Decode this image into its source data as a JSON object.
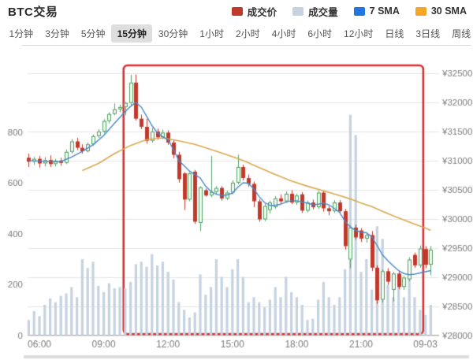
{
  "header": {
    "title": "BTC交易",
    "legend": [
      {
        "label": "成交价",
        "color": "#c0392b"
      },
      {
        "label": "成交量",
        "color": "#c5d2e0"
      },
      {
        "label": "7 SMA",
        "color": "#2276e0"
      },
      {
        "label": "30 SMA",
        "color": "#f5a623"
      }
    ]
  },
  "tabs": {
    "items": [
      "1分钟",
      "3分钟",
      "5分钟",
      "15分钟",
      "30分钟",
      "1小时",
      "2小时",
      "4小时",
      "6小时",
      "12小时",
      "日线",
      "3日线",
      "周线"
    ],
    "selected": "15分钟"
  },
  "chart_data": {
    "type": "candlestick",
    "title": "BTC交易 15分钟 K线图",
    "legend_position": "top-right",
    "grid": true,
    "price_axis": {
      "side": "right",
      "min": 28000,
      "max": 32500,
      "step": 500,
      "tick_values": [
        32500,
        32000,
        31500,
        31000,
        30500,
        30000,
        29500,
        29000,
        28500,
        28000
      ],
      "tick_labels": [
        "¥32500",
        "¥32000",
        "¥31500",
        "¥31000",
        "¥30500",
        "¥30000",
        "¥29500",
        "¥29000",
        "¥28500",
        "¥28000"
      ]
    },
    "volume_axis": {
      "side": "left",
      "min": 0,
      "max": 1030,
      "tick_values": [
        800,
        600,
        400,
        200,
        0
      ],
      "tick_labels": [
        "800",
        "600",
        "400",
        "200",
        "0"
      ]
    },
    "x_axis": {
      "tick_labels": [
        "06:00",
        "09:00",
        "12:00",
        "15:00",
        "18:00",
        "21:00",
        "09-03"
      ],
      "tick_indices": [
        2,
        14,
        26,
        38,
        50,
        62,
        74
      ]
    },
    "candle_fields": [
      "time",
      "open",
      "high",
      "low",
      "close",
      "volume"
    ],
    "candles": [
      [
        "05:30",
        31050,
        31120,
        30890,
        30980,
        60
      ],
      [
        "05:45",
        30980,
        31060,
        30930,
        31030,
        95
      ],
      [
        "06:00",
        31030,
        31080,
        30880,
        30950,
        75
      ],
      [
        "06:15",
        30950,
        31060,
        30900,
        31010,
        120
      ],
      [
        "06:30",
        31010,
        31090,
        30890,
        30940,
        145
      ],
      [
        "06:45",
        30940,
        31030,
        30900,
        31000,
        130
      ],
      [
        "07:00",
        31000,
        31050,
        30910,
        30960,
        155
      ],
      [
        "07:15",
        30960,
        31190,
        30940,
        31150,
        165
      ],
      [
        "07:30",
        31150,
        31370,
        31120,
        31330,
        190
      ],
      [
        "07:45",
        31330,
        31390,
        31180,
        31220,
        150
      ],
      [
        "08:00",
        31220,
        31280,
        31120,
        31160,
        300
      ],
      [
        "08:15",
        31160,
        31310,
        31140,
        31280,
        265
      ],
      [
        "08:30",
        31280,
        31450,
        31260,
        31420,
        290
      ],
      [
        "08:45",
        31420,
        31540,
        31390,
        31500,
        195
      ],
      [
        "09:00",
        31500,
        31710,
        31470,
        31680,
        170
      ],
      [
        "09:15",
        31680,
        31830,
        31640,
        31800,
        205
      ],
      [
        "09:30",
        31800,
        31980,
        31780,
        31880,
        185
      ],
      [
        "09:45",
        31880,
        31960,
        31830,
        31920,
        190
      ],
      [
        "10:00",
        31920,
        32010,
        31780,
        31990,
        185
      ],
      [
        "10:15",
        31990,
        32470,
        31950,
        32340,
        210
      ],
      [
        "10:30",
        32340,
        32480,
        31690,
        31720,
        280
      ],
      [
        "10:45",
        31720,
        31790,
        31540,
        31580,
        290
      ],
      [
        "11:00",
        31580,
        31720,
        31290,
        31340,
        270
      ],
      [
        "11:15",
        31340,
        31560,
        31310,
        31500,
        320
      ],
      [
        "11:30",
        31500,
        31550,
        31360,
        31400,
        275
      ],
      [
        "11:45",
        31400,
        31530,
        31370,
        31480,
        290
      ],
      [
        "12:00",
        31480,
        31520,
        31270,
        31310,
        250
      ],
      [
        "12:15",
        31310,
        31360,
        31040,
        31100,
        220
      ],
      [
        "12:30",
        31100,
        31150,
        30620,
        30680,
        130
      ],
      [
        "12:45",
        30780,
        30800,
        30150,
        30330,
        100
      ],
      [
        "13:00",
        30330,
        30800,
        30300,
        30780,
        70
      ],
      [
        "13:15",
        30810,
        30840,
        29910,
        29950,
        90
      ],
      [
        "13:30",
        29930,
        30560,
        29790,
        30540,
        240
      ],
      [
        "13:45",
        30490,
        30520,
        30380,
        30400,
        160
      ],
      [
        "14:00",
        30400,
        31080,
        30370,
        30460,
        190
      ],
      [
        "14:15",
        30460,
        30560,
        30420,
        30530,
        300
      ],
      [
        "14:30",
        30530,
        30560,
        30310,
        30350,
        230
      ],
      [
        "14:45",
        30350,
        30480,
        30320,
        30450,
        190
      ],
      [
        "15:00",
        30450,
        30660,
        30420,
        30620,
        260
      ],
      [
        "15:15",
        30620,
        31100,
        30590,
        30890,
        300
      ],
      [
        "15:30",
        30890,
        30930,
        30660,
        30700,
        230
      ],
      [
        "15:45",
        30700,
        30760,
        30550,
        30600,
        130
      ],
      [
        "16:00",
        30600,
        30640,
        30200,
        30300,
        150
      ],
      [
        "16:15",
        30300,
        30340,
        29950,
        29990,
        130
      ],
      [
        "16:30",
        29990,
        30260,
        29960,
        30220,
        110
      ],
      [
        "16:45",
        30150,
        30310,
        30090,
        30280,
        140
      ],
      [
        "17:00",
        30200,
        30390,
        30170,
        30350,
        190
      ],
      [
        "17:15",
        30350,
        30420,
        30260,
        30300,
        150
      ],
      [
        "17:30",
        30300,
        30470,
        30270,
        30430,
        230
      ],
      [
        "17:45",
        30430,
        30490,
        30250,
        30280,
        170
      ],
      [
        "18:00",
        30280,
        30430,
        30240,
        30400,
        150
      ],
      [
        "18:15",
        30420,
        30460,
        30100,
        30140,
        120
      ],
      [
        "18:30",
        30140,
        30310,
        30110,
        30280,
        60
      ],
      [
        "18:45",
        30280,
        30330,
        30160,
        30200,
        65
      ],
      [
        "19:00",
        30200,
        30480,
        30170,
        30450,
        140
      ],
      [
        "19:15",
        30450,
        30490,
        30120,
        30180,
        210
      ],
      [
        "19:30",
        30180,
        30220,
        30060,
        30130,
        150
      ],
      [
        "19:45",
        30130,
        30320,
        30100,
        30280,
        120
      ],
      [
        "20:00",
        30280,
        30320,
        30100,
        30130,
        150
      ],
      [
        "20:15",
        30130,
        30170,
        29470,
        29530,
        260
      ],
      [
        "20:30",
        29300,
        29880,
        29150,
        29850,
        870
      ],
      [
        "20:45",
        29850,
        29900,
        29640,
        29680,
        790
      ],
      [
        "21:00",
        29800,
        29840,
        29600,
        29660,
        250
      ],
      [
        "21:15",
        29660,
        29750,
        29590,
        29720,
        300
      ],
      [
        "21:30",
        29720,
        29790,
        29100,
        29160,
        180
      ],
      [
        "21:45",
        29160,
        29200,
        28540,
        28600,
        430
      ],
      [
        "22:00",
        28610,
        29130,
        28560,
        29100,
        380
      ],
      [
        "22:15",
        29100,
        29150,
        28870,
        28920,
        200
      ],
      [
        "22:30",
        28780,
        29090,
        28580,
        29060,
        150
      ],
      [
        "22:45",
        29060,
        29110,
        28790,
        28830,
        230
      ],
      [
        "23:00",
        28830,
        29020,
        28780,
        28990,
        150
      ],
      [
        "23:15",
        28960,
        29340,
        28930,
        29300,
        230
      ],
      [
        "23:30",
        29380,
        29420,
        29160,
        29200,
        150
      ],
      [
        "23:45",
        29200,
        29540,
        29160,
        29490,
        100
      ],
      [
        "00:00",
        29480,
        29530,
        29150,
        29210,
        80
      ],
      [
        "00:15",
        29210,
        29530,
        29030,
        29470,
        120
      ]
    ],
    "sma7": [
      [
        0,
        31000
      ],
      [
        2,
        30990
      ],
      [
        4,
        30980
      ],
      [
        6,
        30985
      ],
      [
        8,
        31060
      ],
      [
        10,
        31160
      ],
      [
        12,
        31270
      ],
      [
        14,
        31430
      ],
      [
        16,
        31640
      ],
      [
        18,
        31840
      ],
      [
        19,
        31930
      ],
      [
        20,
        32000
      ],
      [
        21,
        31920
      ],
      [
        22,
        31760
      ],
      [
        23,
        31600
      ],
      [
        24,
        31480
      ],
      [
        25,
        31410
      ],
      [
        26,
        31360
      ],
      [
        27,
        31190
      ],
      [
        28,
        31000
      ],
      [
        30,
        30820
      ],
      [
        32,
        30700
      ],
      [
        33,
        30560
      ],
      [
        34,
        30470
      ],
      [
        35,
        30420
      ],
      [
        36,
        30400
      ],
      [
        37,
        30410
      ],
      [
        38,
        30440
      ],
      [
        39,
        30540
      ],
      [
        40,
        30620
      ],
      [
        41,
        30610
      ],
      [
        42,
        30510
      ],
      [
        43,
        30380
      ],
      [
        44,
        30280
      ],
      [
        45,
        30230
      ],
      [
        46,
        30230
      ],
      [
        47,
        30250
      ],
      [
        48,
        30290
      ],
      [
        49,
        30310
      ],
      [
        50,
        30310
      ],
      [
        51,
        30290
      ],
      [
        52,
        30270
      ],
      [
        53,
        30240
      ],
      [
        54,
        30250
      ],
      [
        55,
        30270
      ],
      [
        56,
        30240
      ],
      [
        57,
        30180
      ],
      [
        58,
        30110
      ],
      [
        59,
        29960
      ],
      [
        60,
        29860
      ],
      [
        61,
        29800
      ],
      [
        62,
        29770
      ],
      [
        63,
        29760
      ],
      [
        64,
        29690
      ],
      [
        65,
        29540
      ],
      [
        66,
        29380
      ],
      [
        67,
        29280
      ],
      [
        68,
        29190
      ],
      [
        69,
        29110
      ],
      [
        70,
        29060
      ],
      [
        71,
        29040
      ],
      [
        72,
        29050
      ],
      [
        73,
        29070
      ],
      [
        74,
        29090
      ],
      [
        75,
        29110
      ]
    ],
    "sma30": [
      [
        10,
        30830
      ],
      [
        13,
        30950
      ],
      [
        16,
        31120
      ],
      [
        19,
        31260
      ],
      [
        22,
        31360
      ],
      [
        25,
        31390
      ],
      [
        28,
        31340
      ],
      [
        31,
        31280
      ],
      [
        34,
        31190
      ],
      [
        37,
        31100
      ],
      [
        40,
        31000
      ],
      [
        43,
        30880
      ],
      [
        46,
        30760
      ],
      [
        49,
        30650
      ],
      [
        52,
        30560
      ],
      [
        55,
        30480
      ],
      [
        58,
        30400
      ],
      [
        60,
        30340
      ],
      [
        62,
        30270
      ],
      [
        64,
        30210
      ],
      [
        66,
        30130
      ],
      [
        68,
        30050
      ],
      [
        70,
        29980
      ],
      [
        72,
        29910
      ],
      [
        74,
        29840
      ],
      [
        75,
        29800
      ]
    ],
    "annotation": {
      "type": "rect",
      "desc": "红色重点标注框",
      "from_index": 17.7,
      "to_index": 73.6,
      "price_top": 32635,
      "price_bottom": 28020,
      "color": "#d63031",
      "line_width": 2.6,
      "corner_radius": 5
    },
    "colors": {
      "up_border": "#4e9e63",
      "up_fill": "#f3faf3",
      "down": "#c0392b",
      "volume": "#c5d2e0",
      "sma7": "#4a86c8",
      "sma30": "#d9a84e",
      "grid": "#e4e4e4",
      "axis_line": "#aaaaaa",
      "axis_text": "#7a7a7a",
      "bottom_band": "#dcdcdc"
    }
  }
}
